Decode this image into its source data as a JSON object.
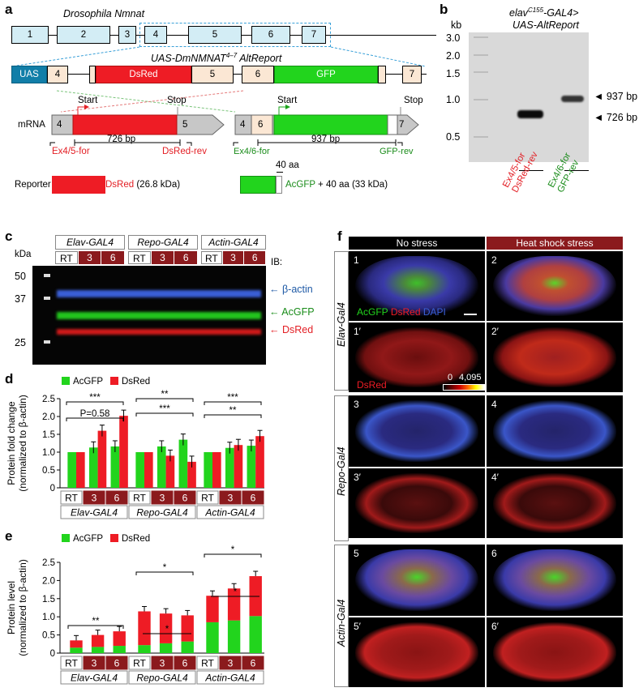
{
  "panel_labels": {
    "a": "a",
    "b": "b",
    "c": "c",
    "d": "d",
    "e": "e",
    "f": "f"
  },
  "a": {
    "title": "Drosophila Nmnat",
    "exons": [
      "1",
      "2",
      "3",
      "4",
      "5",
      "6",
      "7"
    ],
    "construct_title": "UAS-DmNMNAT",
    "construct_sup": "4–7",
    "construct_suffix": " AltReport",
    "uas": "UAS",
    "dsred": "DsRed",
    "gfp": "GFP",
    "e4": "4",
    "e5": "5",
    "e6": "6",
    "e7": "7",
    "mrna": "mRNA",
    "start": "Start",
    "stop": "Stop",
    "len1": "726 bp",
    "len2": "937 bp",
    "primer1": "Ex4/5-for",
    "primer2": "DsRed-rev",
    "primer3": "Ex4/6-for",
    "primer4": "GFP-rev",
    "aa40": "40 aa",
    "reporter": "Reporter",
    "rep_dsred": "DsRed",
    "rep_dsred_size": " (26.8 kDa)",
    "rep_acgfp": "AcGFP",
    "rep_acgfp_size": " + 40 aa (33 kDa)"
  },
  "b": {
    "kb": "kb",
    "title_prefix": "elav",
    "title_sup": "C155",
    "title_suffix": "-GAL4>",
    "title2": "UAS-AltReport",
    "ladder": [
      "3.0",
      "2.0",
      "1.5",
      "1.0",
      "0.5"
    ],
    "band1": "937 bp",
    "band2": "726 bp",
    "lane1_a": "Ex4/5-for",
    "lane1_b": "DsRed-rev",
    "lane2_a": "Ex4/6-for",
    "lane2_b": "GFP-rev"
  },
  "c": {
    "groups": [
      "Elav-GAL4",
      "Repo-GAL4",
      "Actin-GAL4"
    ],
    "conds": [
      "RT",
      "3",
      "6"
    ],
    "kda": "kDa",
    "ib": "IB:",
    "markers": [
      "50",
      "37",
      "25"
    ],
    "bands": [
      {
        "label": "β-actin",
        "color": "#3a5fd6"
      },
      {
        "label": "AcGFP",
        "color": "#1aa31a"
      },
      {
        "label": "DsRed",
        "color": "#e31e24"
      }
    ]
  },
  "chart_data": [
    {
      "type": "bar",
      "panel": "d",
      "ylabel": "Protein fold change (normalized to β-actin)",
      "ylim": [
        0,
        2.5
      ],
      "yticks": [
        "0",
        "0.5",
        "1.0",
        "1.5",
        "2.0",
        "2.5"
      ],
      "categories": [
        "RT",
        "3",
        "6",
        "RT",
        "3",
        "6",
        "RT",
        "3",
        "6"
      ],
      "groups": [
        "Elav-GAL4",
        "Repo-GAL4",
        "Actin-GAL4"
      ],
      "series": [
        {
          "name": "AcGFP",
          "color": "#22d41d",
          "values": [
            1.0,
            1.13,
            1.16,
            1.0,
            1.16,
            1.35,
            1.0,
            1.12,
            1.18
          ]
        },
        {
          "name": "DsRed",
          "color": "#ee1c25",
          "values": [
            1.0,
            1.6,
            2.02,
            1.0,
            0.9,
            0.73,
            1.0,
            1.2,
            1.45
          ]
        }
      ],
      "annotations": [
        "P=0.58",
        "***",
        "***",
        "**",
        "**",
        "***"
      ]
    },
    {
      "type": "bar",
      "panel": "e",
      "ylabel": "Protein level (normalized to β-actin)",
      "ylim": [
        0,
        2.5
      ],
      "yticks": [
        "0",
        "0.5",
        "1.0",
        "1.5",
        "2.0",
        "2.5"
      ],
      "categories": [
        "RT",
        "3",
        "6",
        "RT",
        "3",
        "6",
        "RT",
        "3",
        "6"
      ],
      "groups": [
        "Elav-GAL4",
        "Repo-GAL4",
        "Actin-GAL4"
      ],
      "stacked": true,
      "series": [
        {
          "name": "AcGFP",
          "color": "#22d41d",
          "values": [
            0.15,
            0.17,
            0.2,
            0.22,
            0.27,
            0.32,
            0.85,
            0.9,
            1.02
          ]
        },
        {
          "name": "DsRed",
          "color": "#ee1c25",
          "values": [
            0.2,
            0.33,
            0.4,
            0.93,
            0.82,
            0.72,
            0.73,
            0.88,
            1.1
          ]
        }
      ],
      "annotations": [
        "**",
        "*",
        "*",
        "*",
        "*"
      ]
    }
  ],
  "f": {
    "col1": "No stress",
    "col2": "Heat shock stress",
    "rows": [
      "Elav-Gal4",
      "Repo-Gal4",
      "Actin-Gal4"
    ],
    "tiles": [
      "1",
      "2",
      "1′",
      "2′",
      "3",
      "4",
      "3′",
      "4′",
      "5",
      "6",
      "5′",
      "6′"
    ],
    "leg_acgfp": "AcGFP",
    "leg_dsred": "DsRed",
    "leg_dapi": "DAPI",
    "leg_dsred2": "DsRed",
    "scale_min": "0",
    "scale_max": "4,095"
  }
}
